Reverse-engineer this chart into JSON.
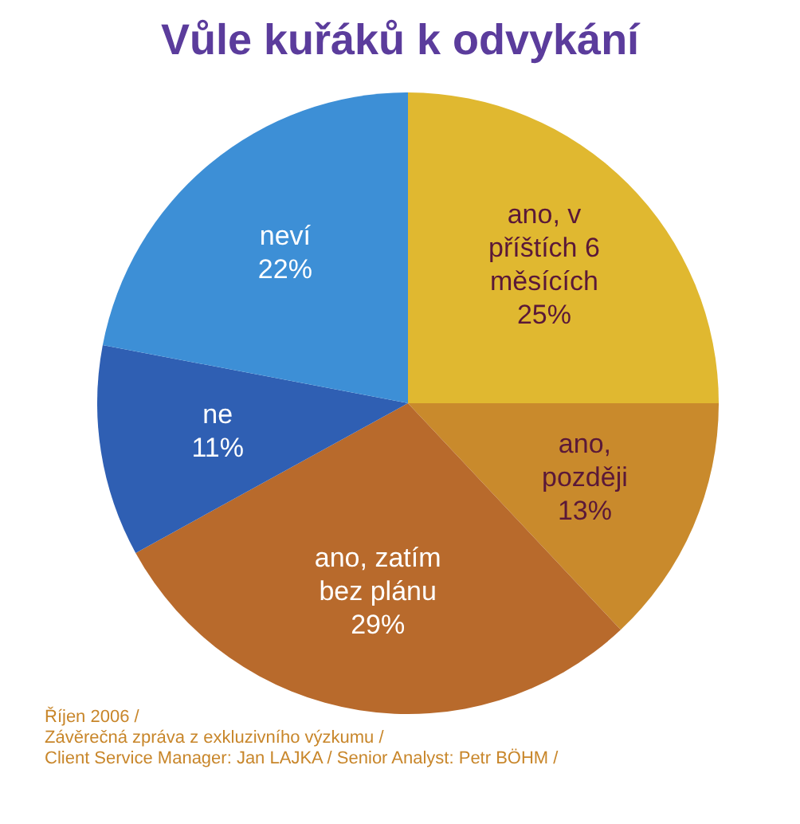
{
  "chart_data": {
    "type": "pie",
    "title": "Vůle kuřáků k odvykání",
    "categories": [
      "ano, v příštích 6 měsících",
      "ano, později",
      "ano, zatím bez plánu",
      "ne",
      "neví"
    ],
    "values": [
      25,
      13,
      29,
      11,
      22
    ],
    "colors": [
      "#e0b830",
      "#c98a2c",
      "#b86a2c",
      "#2f5fb3",
      "#3d8fd6"
    ],
    "value_labels": [
      "25%",
      "13%",
      "29%",
      "11%",
      "22%"
    ],
    "legend": false,
    "annotations": [
      "Říjen 2006 /",
      "Závěrečná zpráva z exkluzivního výzkumu /",
      "Client Service Manager: Jan LAJKA / Senior Analyst: Petr BÖHM /"
    ]
  }
}
